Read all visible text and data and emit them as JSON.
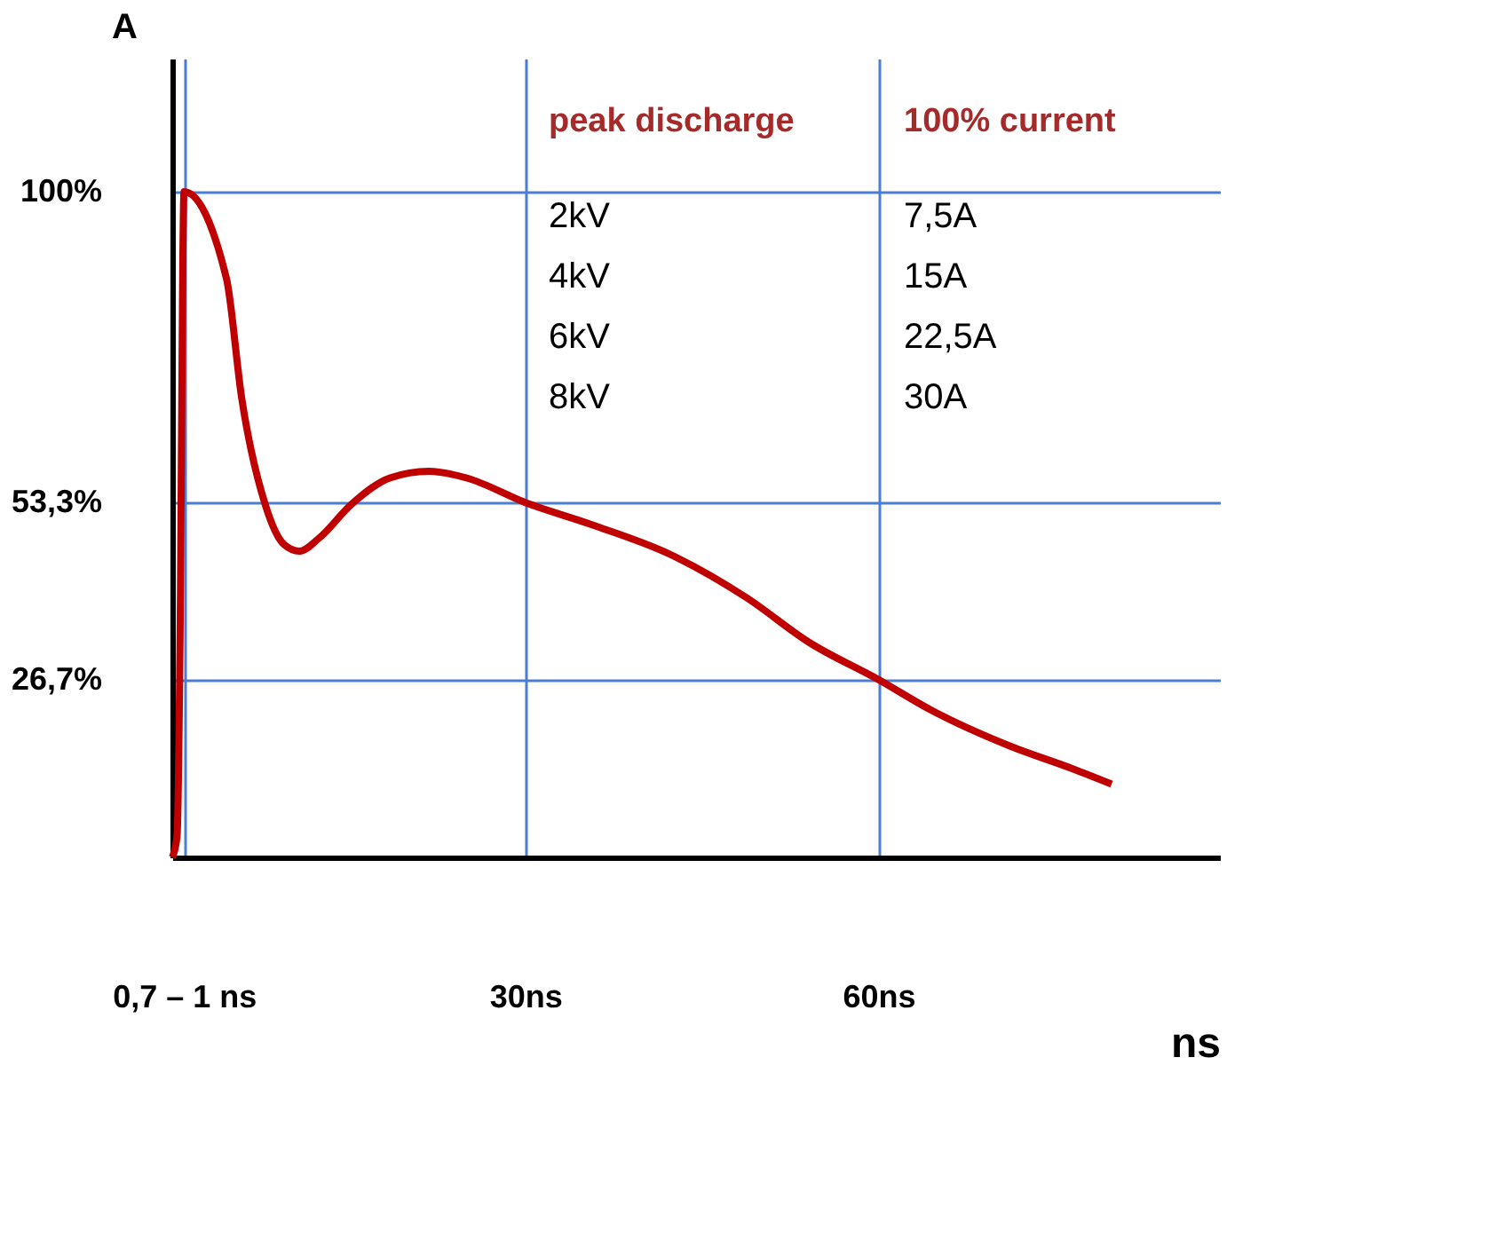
{
  "chart_data": {
    "type": "line",
    "xlabel": "ns",
    "ylabel": "A",
    "x": [
      0,
      0.4,
      0.7,
      0.9,
      1,
      4.6,
      5.9,
      7.9,
      9.5,
      10.8,
      12.5,
      15.2,
      18.5,
      21.8,
      25,
      30,
      35.6,
      42.2,
      48.8,
      54.1,
      60,
      64.6,
      71.2,
      76.5,
      79.8
    ],
    "series": [
      {
        "color": "#c00000",
        "values": [
          0,
          3,
          40,
          90,
          100,
          87,
          69,
          53,
          47,
          46,
          48,
          53,
          57,
          58,
          57,
          53.3,
          50,
          45.6,
          39,
          32.3,
          26.7,
          22,
          16.7,
          13.3,
          11
        ]
      }
    ],
    "xlim": [
      0,
      89
    ],
    "ylim": [
      0,
      120
    ],
    "xticks": [
      {
        "value": 1,
        "label": "0,7 – 1 ns"
      },
      {
        "value": 30,
        "label": "30ns"
      },
      {
        "value": 60,
        "label": "60ns"
      }
    ],
    "yticks": [
      {
        "value": 26.7,
        "label": "26,7%"
      },
      {
        "value": 53.3,
        "label": "53,3%"
      },
      {
        "value": 100,
        "label": "100%"
      }
    ],
    "grid": true,
    "marker": "none",
    "line_style": "solid",
    "annotations": [
      "peak discharge",
      "100% current",
      "2kV",
      "7,5A",
      "4kV",
      "15A",
      "6kV",
      "22,5A",
      "8kV",
      "30A"
    ]
  }
}
